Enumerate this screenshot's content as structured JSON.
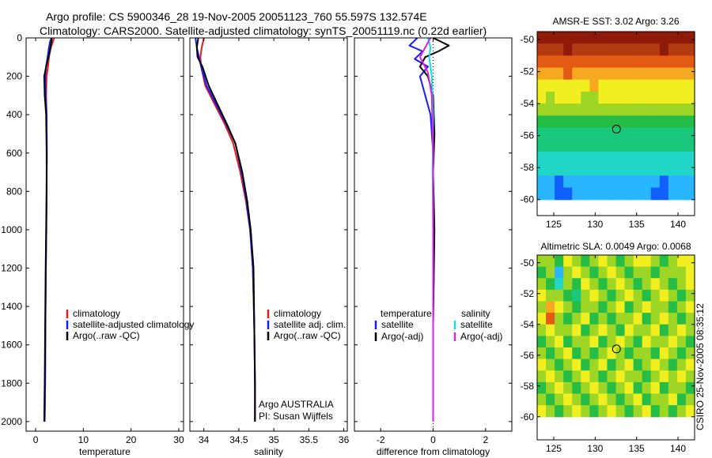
{
  "header": {
    "line1": "Argo profile: CS 5900346_28 19-Nov-2005 20051123_760 55.597S 132.574E",
    "line2": "Climatology: CARS2000. Satellite-adjusted climatology: synTS_20051119.nc (0.22d earlier)"
  },
  "credits": {
    "agency": "Argo AUSTRALIA",
    "pi": "PI: Susan Wijffels",
    "stamp": "CSIRO 25-Nov-2005 08:35:12"
  },
  "colors": {
    "climatology": "#e41a1c",
    "satellite": "#1a1aff",
    "argo": "#000000",
    "satellite_salinity": "#00e5ee",
    "argo_salinity": "#e020e0",
    "zero_line": "#000000"
  },
  "chart_data": [
    {
      "id": "temperature",
      "type": "line",
      "xlabel": "temperature",
      "ylabel": "",
      "xlim": [
        -2,
        31
      ],
      "ylim": [
        2050,
        0
      ],
      "xticks": [
        0,
        10,
        20,
        30
      ],
      "yticks": [
        0,
        200,
        400,
        600,
        800,
        1000,
        1200,
        1400,
        1600,
        1800,
        2000
      ],
      "legend": [
        "climatology",
        "satellite-adjusted climatology",
        "Argo(..raw -QC)"
      ],
      "legend_position": "lower-middle",
      "series": [
        {
          "name": "climatology",
          "color_key": "climatology",
          "x": [
            3.9,
            3.6,
            3.2,
            2.8,
            2.6,
            2.3,
            2.2,
            2.3,
            2.35,
            2.3,
            2.25,
            2.15,
            2.05,
            2.0,
            1.9
          ],
          "y": [
            0,
            20,
            50,
            100,
            150,
            200,
            300,
            400,
            600,
            800,
            1000,
            1200,
            1500,
            1800,
            2000
          ]
        },
        {
          "name": "satellite-adjusted climatology",
          "color_key": "satellite",
          "x": [
            3.3,
            3.0,
            2.8,
            2.5,
            2.2,
            2.0,
            2.1,
            2.3,
            2.35,
            2.3,
            2.25,
            2.15,
            2.05,
            2.0,
            1.9
          ],
          "y": [
            0,
            20,
            50,
            100,
            150,
            200,
            300,
            400,
            600,
            800,
            1000,
            1200,
            1500,
            1800,
            2000
          ]
        },
        {
          "name": "Argo(..raw -QC)",
          "color_key": "argo",
          "x": [
            3.4,
            3.3,
            3.1,
            2.7,
            2.2,
            1.8,
            1.9,
            2.2,
            2.3,
            2.3,
            2.2,
            2.1,
            2.0,
            1.9,
            1.8
          ],
          "y": [
            0,
            20,
            50,
            100,
            150,
            200,
            300,
            400,
            600,
            800,
            1000,
            1200,
            1500,
            1800,
            2000
          ]
        }
      ]
    },
    {
      "id": "salinity",
      "type": "line",
      "xlabel": "salinity",
      "ylabel": "",
      "xlim": [
        33.8,
        36.05
      ],
      "ylim": [
        2050,
        0
      ],
      "xticks": [
        34,
        34.5,
        35,
        35.5,
        36
      ],
      "legend": [
        "climatology",
        "satellite adj. clim.",
        "Argo(..raw -QC)"
      ],
      "legend_position": "lower-right",
      "series": [
        {
          "name": "climatology",
          "color_key": "climatology",
          "x": [
            34.0,
            33.97,
            33.95,
            33.96,
            34.02,
            34.16,
            34.3,
            34.42,
            34.52,
            34.6,
            34.66,
            34.7,
            34.72,
            34.73,
            34.73
          ],
          "y": [
            0,
            50,
            100,
            150,
            250,
            350,
            450,
            550,
            700,
            850,
            1000,
            1200,
            1500,
            1800,
            2000
          ]
        },
        {
          "name": "satellite adj. clim.",
          "color_key": "satellite",
          "x": [
            33.88,
            33.9,
            33.93,
            33.96,
            34.04,
            34.18,
            34.32,
            34.45,
            34.54,
            34.61,
            34.66,
            34.7,
            34.72,
            34.73,
            34.73
          ],
          "y": [
            0,
            50,
            100,
            150,
            250,
            350,
            450,
            550,
            700,
            850,
            1000,
            1200,
            1500,
            1800,
            2000
          ]
        },
        {
          "name": "Argo(..raw -QC)",
          "color_key": "argo",
          "x": [
            33.92,
            33.9,
            33.91,
            33.98,
            34.07,
            34.2,
            34.33,
            34.45,
            34.55,
            34.62,
            34.67,
            34.71,
            34.72,
            34.73,
            34.73
          ],
          "y": [
            0,
            50,
            100,
            150,
            250,
            350,
            450,
            550,
            700,
            850,
            1000,
            1200,
            1500,
            1800,
            2000
          ]
        }
      ]
    },
    {
      "id": "difference",
      "type": "line",
      "xlabel": "difference from climatology",
      "ylabel": "",
      "xlim": [
        -3,
        3
      ],
      "ylim": [
        2050,
        0
      ],
      "xticks": [
        -2,
        0,
        2
      ],
      "legend_temperature_heading": "temperature",
      "legend_salinity_heading": "salinity",
      "legend": [
        "satellite",
        "Argo(-adj)",
        "satellite",
        "Argo(-adj)"
      ],
      "legend_position": "lower-middle",
      "series": [
        {
          "name": "temperature satellite",
          "color_key": "satellite",
          "x": [
            -0.6,
            -0.9,
            -0.4,
            -0.7,
            -0.2,
            -0.5,
            -0.3,
            -0.1,
            0.0,
            0.0,
            0.0,
            0.0
          ],
          "y": [
            0,
            40,
            70,
            110,
            150,
            200,
            300,
            400,
            600,
            1000,
            1500,
            2000
          ]
        },
        {
          "name": "temperature Argo(-adj)",
          "color_key": "argo",
          "x": [
            0.0,
            0.6,
            0.2,
            -0.3,
            -0.5,
            -0.2,
            0.0,
            0.05,
            0.0,
            0.05,
            0.0,
            0.0
          ],
          "y": [
            0,
            40,
            70,
            100,
            150,
            200,
            300,
            500,
            700,
            1000,
            1500,
            2000
          ]
        },
        {
          "name": "salinity satellite",
          "color_key": "satellite_salinity",
          "x": [
            -0.2,
            -0.1,
            -0.15,
            -0.05,
            0.0,
            -0.02,
            0.0,
            0.0,
            0.0
          ],
          "y": [
            0,
            50,
            100,
            200,
            400,
            700,
            1000,
            1500,
            2000
          ]
        },
        {
          "name": "salinity Argo(-adj)",
          "color_key": "argo_salinity",
          "x": [
            -0.1,
            -0.3,
            -0.5,
            -0.2,
            -0.05,
            0.0,
            0.0,
            0.0
          ],
          "y": [
            0,
            50,
            100,
            180,
            300,
            600,
            1000,
            2000
          ]
        }
      ]
    },
    {
      "id": "sst-map",
      "type": "heatmap",
      "title": "AMSR-E SST: 3.02 Argo: 3.26",
      "xlim": [
        123,
        142
      ],
      "ylim": [
        -61,
        -49.5
      ],
      "data_ylim": [
        -60,
        -49.5
      ],
      "xticks": [
        125,
        130,
        135,
        140
      ],
      "yticks": [
        -50,
        -52,
        -54,
        -56,
        -58,
        -60
      ],
      "marker": {
        "lon": 132.574,
        "lat": -55.597
      },
      "palette": [
        "#1060ff",
        "#29b6ff",
        "#21d6c6",
        "#19c87a",
        "#25bd45",
        "#9ed625",
        "#f2ef20",
        "#f6a920",
        "#e25a13",
        "#b43a11",
        "#8f1a0a"
      ],
      "rows": [
        [
          10,
          10,
          10,
          10,
          10,
          10,
          10,
          10,
          10,
          10,
          10,
          10,
          10,
          10,
          10,
          10,
          10,
          10
        ],
        [
          9,
          9,
          9,
          10,
          9,
          9,
          9,
          9,
          9,
          9,
          9,
          9,
          9,
          9,
          10,
          9,
          9,
          9
        ],
        [
          8,
          8,
          8,
          8,
          8,
          8,
          8,
          8,
          8,
          8,
          8,
          8,
          8,
          8,
          8,
          8,
          8,
          8
        ],
        [
          7,
          7,
          7,
          8,
          7,
          7,
          7,
          7,
          7,
          7,
          7,
          7,
          7,
          7,
          7,
          7,
          7,
          7
        ],
        [
          6,
          6,
          6,
          6,
          6,
          6,
          7,
          6,
          6,
          6,
          6,
          6,
          6,
          6,
          6,
          6,
          6,
          6
        ],
        [
          6,
          5,
          6,
          6,
          6,
          5,
          5,
          6,
          6,
          6,
          6,
          6,
          6,
          6,
          6,
          6,
          6,
          6
        ],
        [
          5,
          5,
          5,
          5,
          5,
          5,
          5,
          5,
          5,
          5,
          5,
          5,
          5,
          5,
          5,
          5,
          5,
          5
        ],
        [
          4,
          4,
          4,
          4,
          4,
          4,
          4,
          4,
          4,
          4,
          4,
          4,
          4,
          4,
          4,
          4,
          4,
          4
        ],
        [
          3,
          3,
          3,
          3,
          3,
          3,
          3,
          3,
          3,
          3,
          3,
          3,
          3,
          3,
          3,
          3,
          3,
          3
        ],
        [
          3,
          3,
          3,
          3,
          3,
          3,
          3,
          3,
          3,
          3,
          3,
          3,
          3,
          3,
          3,
          3,
          3,
          3
        ],
        [
          2,
          2,
          2,
          2,
          2,
          2,
          2,
          2,
          2,
          2,
          2,
          2,
          2,
          2,
          2,
          2,
          2,
          2
        ],
        [
          2,
          2,
          2,
          2,
          2,
          2,
          2,
          2,
          2,
          2,
          2,
          2,
          2,
          2,
          2,
          2,
          2,
          2
        ],
        [
          1,
          1,
          0,
          1,
          1,
          1,
          1,
          1,
          1,
          1,
          1,
          1,
          1,
          1,
          0,
          1,
          1,
          1
        ],
        [
          1,
          1,
          0,
          0,
          1,
          1,
          1,
          1,
          1,
          1,
          1,
          1,
          1,
          0,
          0,
          1,
          1,
          1
        ]
      ]
    },
    {
      "id": "sla-map",
      "type": "heatmap",
      "title": "Altimetric SLA: 0.0049 Argo: 0.0068",
      "xlim": [
        123,
        142
      ],
      "ylim": [
        -61.5,
        -49.5
      ],
      "data_ylim": [
        -60,
        -49.5
      ],
      "xticks": [
        125,
        130,
        135,
        140
      ],
      "yticks": [
        -50,
        -52,
        -54,
        -56,
        -58,
        -60
      ],
      "marker": {
        "lon": 132.574,
        "lat": -55.597
      },
      "palette": [
        "#1f6cf2",
        "#29b6ff",
        "#21d6c6",
        "#19c87a",
        "#25bd45",
        "#9ed625",
        "#f2ef20",
        "#f6a920",
        "#e25a13",
        "#b43a11",
        "#8f1a0a"
      ],
      "rows": [
        [
          5,
          5,
          4,
          6,
          5,
          4,
          5,
          6,
          5,
          4,
          5,
          6,
          6,
          5,
          4,
          5,
          6,
          6
        ],
        [
          4,
          5,
          1,
          5,
          6,
          5,
          4,
          5,
          6,
          5,
          4,
          5,
          5,
          4,
          5,
          5,
          5,
          6
        ],
        [
          5,
          4,
          2,
          5,
          4,
          6,
          5,
          4,
          5,
          6,
          5,
          4,
          5,
          6,
          5,
          4,
          5,
          6
        ],
        [
          6,
          5,
          5,
          4,
          3,
          5,
          6,
          5,
          4,
          5,
          6,
          5,
          4,
          5,
          6,
          5,
          4,
          5
        ],
        [
          5,
          7,
          6,
          5,
          4,
          5,
          5,
          4,
          5,
          6,
          4,
          5,
          6,
          5,
          5,
          4,
          5,
          6
        ],
        [
          6,
          8,
          5,
          4,
          5,
          6,
          4,
          5,
          4,
          5,
          5,
          6,
          4,
          5,
          6,
          5,
          4,
          5
        ],
        [
          5,
          6,
          5,
          5,
          6,
          4,
          5,
          6,
          5,
          4,
          6,
          5,
          5,
          6,
          4,
          5,
          6,
          5
        ],
        [
          4,
          5,
          6,
          4,
          5,
          5,
          6,
          4,
          5,
          6,
          5,
          4,
          6,
          5,
          5,
          6,
          5,
          4
        ],
        [
          5,
          4,
          5,
          6,
          4,
          5,
          4,
          5,
          6,
          5,
          4,
          5,
          5,
          4,
          6,
          5,
          4,
          5
        ],
        [
          6,
          5,
          4,
          5,
          6,
          4,
          5,
          6,
          4,
          5,
          6,
          4,
          5,
          6,
          5,
          4,
          5,
          6
        ],
        [
          5,
          6,
          5,
          4,
          5,
          6,
          5,
          4,
          5,
          6,
          5,
          5,
          4,
          5,
          6,
          5,
          6,
          5
        ],
        [
          4,
          5,
          6,
          5,
          4,
          5,
          6,
          5,
          4,
          5,
          6,
          4,
          5,
          6,
          4,
          5,
          5,
          4
        ],
        [
          5,
          4,
          5,
          6,
          5,
          4,
          5,
          6,
          5,
          4,
          5,
          6,
          4,
          5,
          5,
          6,
          4,
          5
        ],
        [
          6,
          5,
          4,
          5,
          6,
          5,
          4,
          5,
          6,
          5,
          4,
          5,
          6,
          4,
          5,
          4,
          5,
          6
        ]
      ]
    }
  ]
}
